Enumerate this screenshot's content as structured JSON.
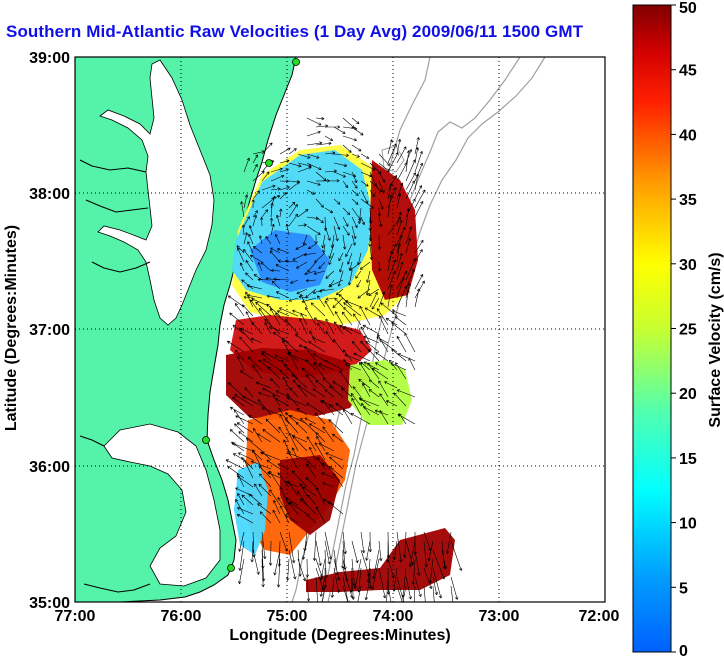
{
  "title": "Southern Mid-Atlantic Raw Velocities (1 Day Avg) 2009/06/11 1500 GMT",
  "map": {
    "xlabel": "Longitude (Degrees:Minutes)",
    "ylabel": "Latitude (Degrees:Minutes)",
    "x_ticks": [
      "77:00",
      "76:00",
      "75:00",
      "74:00",
      "73:00",
      "72:00"
    ],
    "y_ticks": [
      "39:00",
      "38:00",
      "37:00",
      "36:00",
      "35:00"
    ],
    "lon_range": [
      -77,
      -72
    ],
    "lat_range": [
      35,
      39
    ],
    "grid": true,
    "colors": {
      "land": "#55f2aa",
      "ocean": "#ffffff",
      "bathymetry": "#a0a0a0",
      "coast": "#000000",
      "station": "#22dd22"
    }
  },
  "colorbar": {
    "label": "Surface Velocity (cm/s)",
    "ticks": [
      "0",
      "5",
      "10",
      "15",
      "20",
      "25",
      "30",
      "35",
      "40",
      "45",
      "50"
    ],
    "range": [
      0,
      50
    ],
    "colormap": "jet"
  }
}
